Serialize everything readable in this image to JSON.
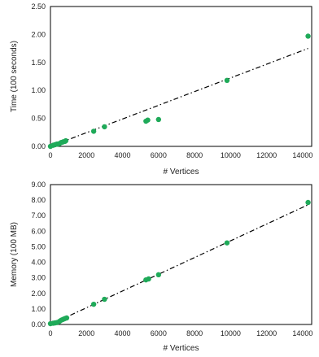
{
  "colors": {
    "point": "#1faa59",
    "trend": "#000000",
    "axis": "#000000",
    "text": "#222222"
  },
  "chart_data": [
    {
      "type": "scatter",
      "title": "",
      "xlabel": "# Vertices",
      "ylabel": "Time (100 seconds)",
      "xlim": [
        0,
        14500
      ],
      "ylim": [
        0,
        2.5
      ],
      "x_ticks": [
        0,
        2000,
        4000,
        6000,
        8000,
        10000,
        12000,
        14000
      ],
      "x_tick_labels": [
        "0",
        "2000",
        "4000",
        "6000",
        "8000",
        "10000",
        "12000",
        "14000"
      ],
      "y_ticks": [
        0,
        0.5,
        1.0,
        1.5,
        2.0,
        2.5
      ],
      "y_tick_labels": [
        "0.00",
        "0.50",
        "1.00",
        "1.50",
        "2.00",
        "2.50"
      ],
      "grid": false,
      "legend": "none",
      "series": [
        {
          "points": [
            [
              0,
              0.0
            ],
            [
              150,
              0.02
            ],
            [
              250,
              0.03
            ],
            [
              350,
              0.04
            ],
            [
              400,
              0.04
            ],
            [
              500,
              0.05
            ],
            [
              600,
              0.07
            ],
            [
              700,
              0.08
            ],
            [
              800,
              0.09
            ],
            [
              850,
              0.1
            ],
            [
              2400,
              0.27
            ],
            [
              3000,
              0.35
            ],
            [
              5300,
              0.45
            ],
            [
              5400,
              0.47
            ],
            [
              6000,
              0.48
            ],
            [
              9800,
              1.18
            ],
            [
              14300,
              1.97
            ]
          ]
        }
      ],
      "trendline": {
        "style": "dash-dot",
        "from": [
          0,
          0.0
        ],
        "to": [
          14300,
          1.75
        ]
      }
    },
    {
      "type": "scatter",
      "title": "",
      "xlabel": "# Vertices",
      "ylabel": "Memory (100 MB)",
      "xlim": [
        0,
        14500
      ],
      "ylim": [
        0,
        9.0
      ],
      "x_ticks": [
        0,
        2000,
        4000,
        6000,
        8000,
        10000,
        12000,
        14000
      ],
      "x_tick_labels": [
        "0",
        "2000",
        "4000",
        "6000",
        "8000",
        "10000",
        "12000",
        "14000"
      ],
      "y_ticks": [
        0,
        1,
        2,
        3,
        4,
        5,
        6,
        7,
        8,
        9
      ],
      "y_tick_labels": [
        "0.00",
        "1.00",
        "2.00",
        "3.00",
        "4.00",
        "5.00",
        "6.00",
        "7.00",
        "8.00",
        "9.00"
      ],
      "grid": false,
      "legend": "none",
      "series": [
        {
          "points": [
            [
              0,
              0.05
            ],
            [
              150,
              0.08
            ],
            [
              250,
              0.1
            ],
            [
              350,
              0.12
            ],
            [
              500,
              0.2
            ],
            [
              600,
              0.28
            ],
            [
              700,
              0.33
            ],
            [
              800,
              0.38
            ],
            [
              900,
              0.42
            ],
            [
              2400,
              1.3
            ],
            [
              3000,
              1.62
            ],
            [
              5300,
              2.87
            ],
            [
              5450,
              2.93
            ],
            [
              6000,
              3.2
            ],
            [
              9800,
              5.25
            ],
            [
              14300,
              7.85
            ]
          ]
        }
      ],
      "trendline": {
        "style": "dash-dot",
        "from": [
          0,
          0.0
        ],
        "to": [
          14300,
          7.7
        ]
      }
    }
  ]
}
